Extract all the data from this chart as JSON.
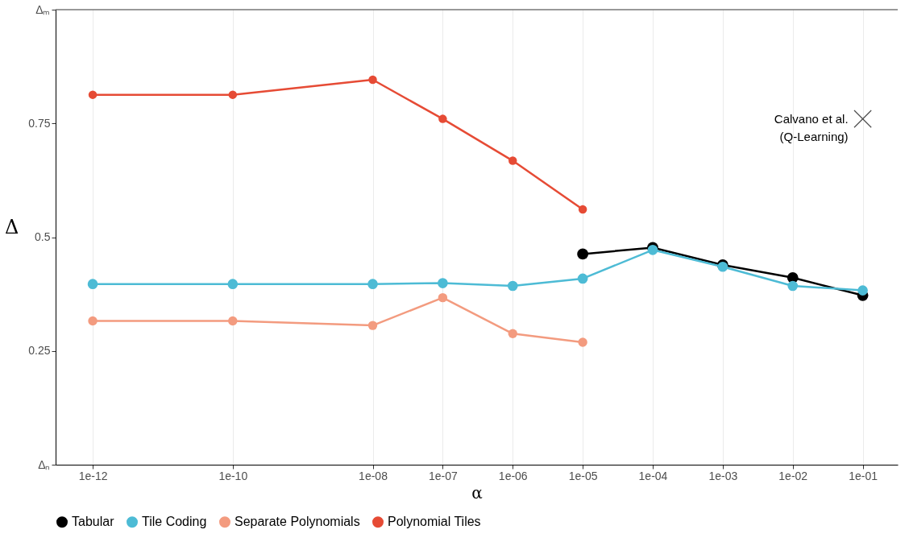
{
  "chart_data": {
    "type": "line",
    "xlabel": "α",
    "ylabel": "Δ",
    "log": "x",
    "grid": "x",
    "legend": "bottom",
    "marker": "circle",
    "line_style": "solid",
    "xlim": [
      2.95e-13,
      0.316
    ],
    "xticks": [
      {
        "value": 1e-12,
        "label": "1e-12"
      },
      {
        "value": 1e-10,
        "label": "1e-10"
      },
      {
        "value": 1e-08,
        "label": "1e-08"
      },
      {
        "value": 1e-07,
        "label": "1e-07"
      },
      {
        "value": 1e-06,
        "label": "1e-06"
      },
      {
        "value": 1e-05,
        "label": "1e-05"
      },
      {
        "value": 0.0001,
        "label": "1e-04"
      },
      {
        "value": 0.001,
        "label": "1e-03"
      },
      {
        "value": 0.01,
        "label": "1e-02"
      },
      {
        "value": 0.1,
        "label": "1e-01"
      }
    ],
    "ylim": [
      0,
      1
    ],
    "yticks": [
      {
        "value": 0,
        "label": "Δₙ"
      },
      0.25,
      0.5,
      0.75,
      {
        "value": 1,
        "label": "Δₘ"
      }
    ],
    "ref_lines": [
      {
        "axis": "y",
        "value": 1,
        "color": "#333333"
      }
    ],
    "series": [
      {
        "name": "Tabular",
        "color": "#000000",
        "x": [
          1e-05,
          0.0001,
          0.001,
          0.01,
          0.1
        ],
        "values": [
          0.463,
          0.477,
          0.439,
          0.411,
          0.372
        ]
      },
      {
        "name": "Tile Coding",
        "color": "#4dbbd5",
        "x": [
          1e-12,
          1e-10,
          1e-08,
          1e-07,
          1e-06,
          1e-05,
          0.0001,
          0.001,
          0.01,
          0.1
        ],
        "values": [
          0.397,
          0.397,
          0.397,
          0.399,
          0.393,
          0.409,
          0.472,
          0.435,
          0.393,
          0.383
        ]
      },
      {
        "name": "Separate Polynomials",
        "color": "#f39b7f",
        "x": [
          1e-12,
          1e-10,
          1e-08,
          1e-07,
          1e-06,
          1e-05
        ],
        "values": [
          0.316,
          0.316,
          0.306,
          0.367,
          0.288,
          0.269
        ]
      },
      {
        "name": "Polynomial Tiles",
        "color": "#e64b35",
        "x": [
          1e-12,
          1e-10,
          1e-08,
          1e-07,
          1e-06,
          1e-05
        ],
        "values": [
          0.813,
          0.813,
          0.846,
          0.76,
          0.668,
          0.561
        ]
      },
      {
        "type": "scatter",
        "marker": "cross",
        "color": "#000000",
        "x": [
          0.1
        ],
        "values": [
          0.76
        ]
      }
    ],
    "annotations": [
      {
        "text": "Calvano et al.\n(Q-Learning)",
        "x": 0.1,
        "y": 0.76
      }
    ]
  }
}
